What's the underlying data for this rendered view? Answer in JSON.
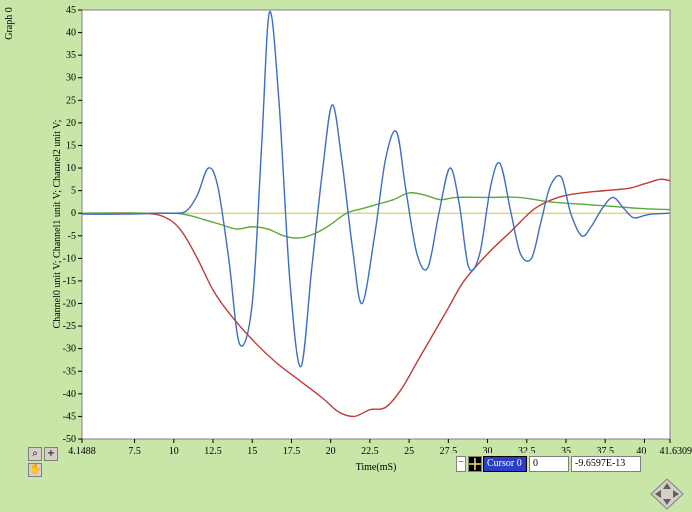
{
  "graph_title": "Graph 0",
  "palette": {
    "zoom_icon": "zoom-icon",
    "cursor_icon": "crosshair-icon",
    "pan_icon": "hand-icon"
  },
  "cursor_panel": {
    "name": "Cursor 0",
    "x_value": "0",
    "y_value": "-9.6597E-13"
  },
  "colors": {
    "plot_bg": "#ffffff",
    "frame_bg": "#c8e6a8",
    "blue": "#3a6fc4",
    "red": "#c23a3a",
    "green": "#5aaa3a",
    "zero_line": "#e8c020"
  },
  "chart_data": {
    "type": "line",
    "title": "",
    "xlabel": "Time(mS)",
    "ylabel": "Channel0 unit V; Channel1 unit V; Channel2 unit V;",
    "xlim": [
      4.1488,
      41.6309
    ],
    "ylim": [
      -50,
      45
    ],
    "x_ticks": [
      4.1488,
      7.5,
      10,
      12.5,
      15,
      17.5,
      20,
      22.5,
      25,
      27.5,
      30,
      32.5,
      35,
      37.5,
      40,
      41.6309
    ],
    "x_tick_labels": [
      "4.1488",
      "7.5",
      "10",
      "12.5",
      "15",
      "17.5",
      "20",
      "22.5",
      "25",
      "27.5",
      "30",
      "32.5",
      "35",
      "37.5",
      "40",
      "41.6309"
    ],
    "y_ticks": [
      45,
      40,
      35,
      30,
      25,
      20,
      15,
      10,
      5,
      0,
      -5,
      -10,
      -15,
      -20,
      -25,
      -30,
      -35,
      -40,
      -45,
      -50
    ],
    "y_tick_labels": [
      "45",
      "40",
      "35",
      "30",
      "25",
      "20",
      "15",
      "10",
      "5",
      "0",
      "-5",
      "-10",
      "-15",
      "-20",
      "-25",
      "-30",
      "-35",
      "-40",
      "-45",
      "-50"
    ],
    "grid": false,
    "series": [
      {
        "color": "#3a6fc4",
        "x": [
          4.15,
          7,
          9,
          10,
          10.8,
          11.5,
          12.2,
          12.8,
          13.5,
          14.2,
          15,
          15.6,
          16.1,
          16.7,
          17.4,
          18.1,
          18.8,
          19.5,
          20.1,
          20.7,
          21.4,
          22,
          22.8,
          23.5,
          24.2,
          24.8,
          25.5,
          26.2,
          26.9,
          27.6,
          28.2,
          28.8,
          29.5,
          30.2,
          30.8,
          31.5,
          32.1,
          32.8,
          33.4,
          34,
          34.7,
          35.3,
          36,
          36.6,
          37.3,
          38,
          38.7,
          39.3,
          40,
          40.5,
          41,
          41.63
        ],
        "values": [
          -0.2,
          -0.2,
          0,
          0,
          0.5,
          4,
          10,
          6,
          -10,
          -29,
          -20,
          15,
          44.5,
          25,
          -15,
          -34,
          -12,
          10,
          24,
          12,
          -8,
          -20,
          -5,
          12,
          18,
          5,
          -9,
          -12,
          0,
          10,
          2,
          -12,
          -9,
          6,
          11,
          0,
          -9,
          -10,
          -2,
          6,
          8,
          0,
          -5,
          -3,
          1,
          3.5,
          1,
          -1,
          -0.5,
          -0.2,
          -0.1,
          0
        ]
      },
      {
        "color": "#c23a3a",
        "x": [
          4.15,
          8,
          9.5,
          10.5,
          11.5,
          12.5,
          13.5,
          15,
          16.5,
          18,
          19.5,
          20.5,
          21.5,
          22.5,
          23.5,
          24.5,
          25.5,
          26.5,
          27.5,
          28.5,
          30,
          31.5,
          33,
          34.5,
          36,
          37.5,
          39,
          40,
          41,
          41.63
        ],
        "values": [
          0,
          0,
          -1,
          -4,
          -10,
          -17,
          -22,
          -28,
          -33,
          -37,
          -41,
          -44,
          -45,
          -43.5,
          -43,
          -39,
          -33,
          -27,
          -21,
          -15,
          -9,
          -4,
          1,
          3.5,
          4.5,
          5,
          5.5,
          6.5,
          7.5,
          7.2
        ]
      },
      {
        "color": "#5aaa3a",
        "x": [
          4.15,
          8,
          10,
          11,
          12,
          13,
          14,
          15,
          16,
          17,
          18,
          19,
          20,
          21,
          22,
          23,
          24,
          25,
          26,
          27,
          28,
          30,
          32,
          34,
          36,
          38,
          40,
          41.63
        ],
        "values": [
          0,
          0,
          0,
          -0.5,
          -1.5,
          -2.5,
          -3.5,
          -3,
          -3.5,
          -5,
          -5.5,
          -4.5,
          -2.5,
          0,
          1,
          2,
          3,
          4.5,
          4,
          3,
          3.5,
          3.5,
          3.5,
          2.5,
          2,
          1.5,
          1,
          0.8
        ]
      },
      {
        "color": "#e8c020",
        "x": [
          4.15,
          41.63
        ],
        "values": [
          0,
          0
        ]
      }
    ]
  }
}
